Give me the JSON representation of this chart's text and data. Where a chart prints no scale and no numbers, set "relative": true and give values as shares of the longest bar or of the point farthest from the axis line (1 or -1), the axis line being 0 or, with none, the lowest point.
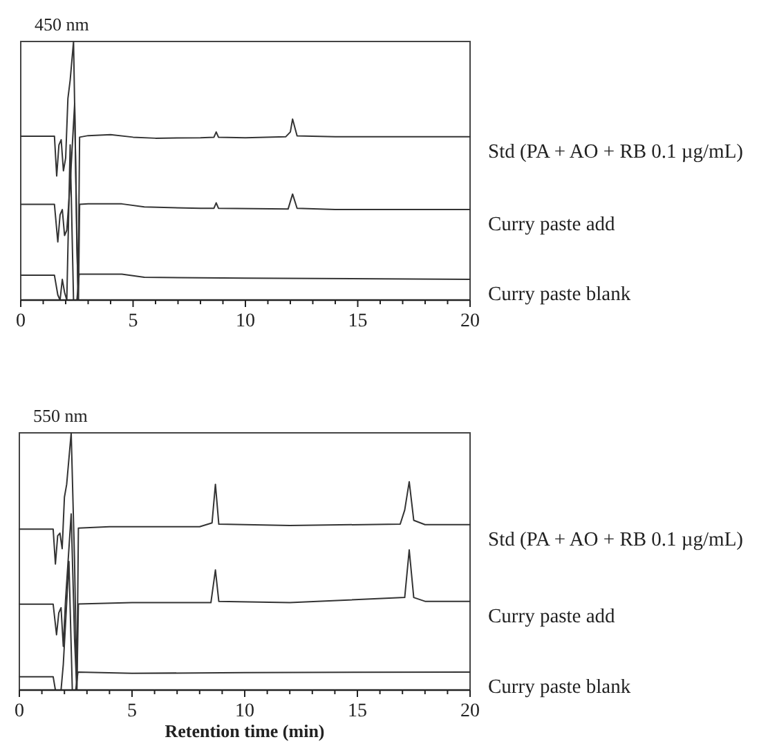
{
  "chart_data": [
    {
      "type": "line",
      "title": "450 nm",
      "relative": true,
      "xlim": [
        0,
        20
      ],
      "xticks": [
        0,
        {
          "value": 1,
          "label": null
        },
        {
          "value": 2,
          "label": null
        },
        {
          "value": 3,
          "label": null
        },
        {
          "value": 4,
          "label": null
        },
        5,
        {
          "value": 6,
          "label": null
        },
        {
          "value": 7,
          "label": null
        },
        {
          "value": 8,
          "label": null
        },
        {
          "value": 9,
          "label": null
        },
        10,
        {
          "value": 11,
          "label": null
        },
        {
          "value": 12,
          "label": null
        },
        {
          "value": 13,
          "label": null
        },
        {
          "value": 14,
          "label": null
        },
        15,
        {
          "value": 16,
          "label": null
        },
        {
          "value": 17,
          "label": null
        },
        {
          "value": 18,
          "label": null
        },
        {
          "value": 19,
          "label": null
        },
        20
      ],
      "grid": false,
      "legend": false,
      "marker": "none",
      "line_style": "solid",
      "series": [
        {
          "name": "Std (PA + AO + RB 0.1 µg/mL)",
          "color": "#333333",
          "x": [
            0,
            1.5,
            1.6,
            1.7,
            1.8,
            1.9,
            2.0,
            2.1,
            2.2,
            2.35,
            2.45,
            2.55,
            2.62,
            3,
            4,
            5,
            6,
            8,
            8.6,
            8.7,
            8.8,
            10,
            11.8,
            12.0,
            12.1,
            12.3,
            14,
            17,
            20
          ],
          "values": [
            0.634,
            0.634,
            0.48,
            0.6,
            0.62,
            0.5,
            0.55,
            0.78,
            0.85,
            1.0,
            0.5,
            0,
            0.63,
            0.636,
            0.64,
            0.63,
            0.626,
            0.628,
            0.63,
            0.65,
            0.63,
            0.628,
            0.632,
            0.65,
            0.7,
            0.635,
            0.632,
            0.632,
            0.632
          ]
        },
        {
          "name": "Curry paste add",
          "color": "#333333",
          "x": [
            0,
            1.5,
            1.65,
            1.75,
            1.85,
            1.95,
            2.05,
            2.2,
            2.4,
            2.5,
            2.57,
            2.62,
            3,
            4.5,
            5.5,
            8,
            8.6,
            8.7,
            8.8,
            11.9,
            12.1,
            12.3,
            14,
            20
          ],
          "values": [
            0.37,
            0.37,
            0.225,
            0.33,
            0.35,
            0.25,
            0.27,
            0.45,
            0.76,
            0.2,
            0,
            0.37,
            0.372,
            0.372,
            0.36,
            0.355,
            0.355,
            0.376,
            0.355,
            0.352,
            0.41,
            0.355,
            0.35,
            0.35
          ]
        },
        {
          "name": "Curry paste blank",
          "color": "#333333",
          "x": [
            0,
            1.5,
            1.65,
            1.75,
            1.85,
            1.95,
            2.05,
            2.2,
            2.35,
            2.5,
            2.6,
            3,
            4.5,
            5.5,
            10,
            20
          ],
          "values": [
            0.096,
            0.096,
            0.02,
            0,
            0.08,
            0.03,
            0,
            0.6,
            0,
            0,
            0.1,
            0.1,
            0.1,
            0.088,
            0.085,
            0.08
          ]
        }
      ]
    },
    {
      "type": "line",
      "title": "550 nm",
      "xlabel": "Retention time (min)",
      "relative": true,
      "xlim": [
        0,
        20
      ],
      "xticks": [
        0,
        {
          "value": 1,
          "label": null
        },
        {
          "value": 2,
          "label": null
        },
        {
          "value": 3,
          "label": null
        },
        {
          "value": 4,
          "label": null
        },
        5,
        {
          "value": 6,
          "label": null
        },
        {
          "value": 7,
          "label": null
        },
        {
          "value": 8,
          "label": null
        },
        {
          "value": 9,
          "label": null
        },
        10,
        {
          "value": 11,
          "label": null
        },
        {
          "value": 12,
          "label": null
        },
        {
          "value": 13,
          "label": null
        },
        {
          "value": 14,
          "label": null
        },
        15,
        {
          "value": 16,
          "label": null
        },
        {
          "value": 17,
          "label": null
        },
        {
          "value": 18,
          "label": null
        },
        {
          "value": 19,
          "label": null
        },
        20
      ],
      "grid": false,
      "legend": false,
      "marker": "none",
      "line_style": "solid",
      "series": [
        {
          "name": "Std (PA + AO + RB 0.1 µg/mL)",
          "color": "#333333",
          "x": [
            0,
            1.5,
            1.6,
            1.7,
            1.8,
            1.9,
            2.0,
            2.1,
            2.3,
            2.45,
            2.55,
            2.62,
            4,
            8,
            8.55,
            8.7,
            8.85,
            12,
            16.9,
            17.1,
            17.3,
            17.5,
            18,
            20
          ],
          "values": [
            0.626,
            0.626,
            0.49,
            0.6,
            0.61,
            0.55,
            0.75,
            0.8,
            1.0,
            0.5,
            0,
            0.63,
            0.635,
            0.635,
            0.65,
            0.8,
            0.645,
            0.64,
            0.645,
            0.7,
            0.81,
            0.66,
            0.643,
            0.643
          ]
        },
        {
          "name": "Curry paste add",
          "color": "#333333",
          "x": [
            0,
            1.5,
            1.65,
            1.75,
            1.85,
            1.95,
            2.05,
            2.3,
            2.45,
            2.55,
            2.62,
            5,
            8.5,
            8.7,
            8.85,
            12,
            17.1,
            17.3,
            17.5,
            18,
            20
          ],
          "values": [
            0.334,
            0.334,
            0.215,
            0.3,
            0.32,
            0.17,
            0.35,
            0.685,
            0.2,
            0,
            0.335,
            0.34,
            0.34,
            0.467,
            0.345,
            0.34,
            0.36,
            0.545,
            0.36,
            0.345,
            0.345
          ]
        },
        {
          "name": "Curry paste blank",
          "color": "#333333",
          "x": [
            0,
            1.5,
            1.6,
            1.85,
            1.95,
            2.2,
            2.35,
            2.5,
            2.6,
            5,
            10,
            20
          ],
          "values": [
            0.052,
            0.052,
            0,
            0,
            0.1,
            0.5,
            0,
            0,
            0.07,
            0.065,
            0.068,
            0.07
          ]
        }
      ]
    }
  ]
}
